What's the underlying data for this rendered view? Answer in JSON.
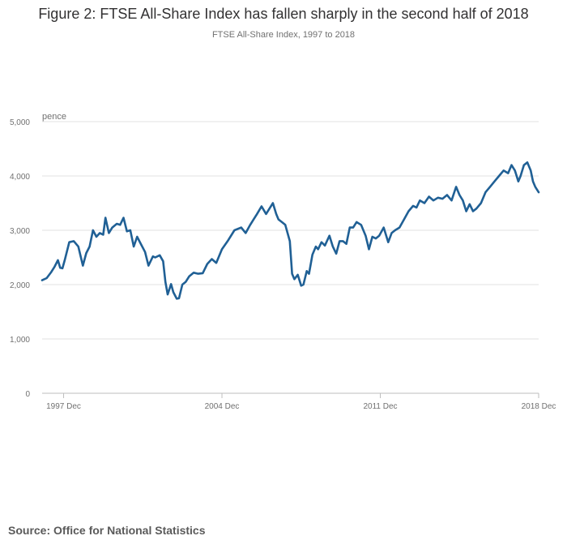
{
  "chart_data": {
    "type": "line",
    "title": "Figure 2: FTSE All-Share Index has fallen sharply in the second half of 2018",
    "subtitle": "FTSE All-Share Index, 1997 to 2018",
    "ylabel": "pence",
    "xlabel": "",
    "ylim": [
      0,
      5000
    ],
    "yticks": [
      0,
      1000,
      2000,
      3000,
      4000,
      5000
    ],
    "ytick_labels": [
      "0",
      "1,000",
      "2,000",
      "3,000",
      "4,000",
      "5,000"
    ],
    "xlim": [
      1997.0,
      2018.95
    ],
    "xticks": [
      1997.95,
      2004.95,
      2011.95,
      2018.95
    ],
    "xtick_labels": [
      "1997 Dec",
      "2004 Dec",
      "2011 Dec",
      "2018 Dec"
    ],
    "grid": true,
    "series": [
      {
        "name": "FTSE All-Share Index",
        "color": "#206095",
        "x": [
          1997.0,
          1997.2,
          1997.4,
          1997.55,
          1997.7,
          1997.8,
          1997.9,
          1998.0,
          1998.2,
          1998.4,
          1998.6,
          1998.8,
          1998.95,
          1999.1,
          1999.25,
          1999.4,
          1999.55,
          1999.7,
          1999.8,
          1999.95,
          2000.1,
          2000.3,
          2000.45,
          2000.6,
          2000.75,
          2000.9,
          2001.05,
          2001.2,
          2001.35,
          2001.55,
          2001.7,
          2001.9,
          2002.0,
          2002.2,
          2002.35,
          2002.45,
          2002.55,
          2002.7,
          2002.8,
          2002.95,
          2003.05,
          2003.2,
          2003.35,
          2003.5,
          2003.7,
          2003.9,
          2004.1,
          2004.3,
          2004.5,
          2004.7,
          2004.95,
          2005.2,
          2005.5,
          2005.8,
          2006.0,
          2006.2,
          2006.35,
          2006.5,
          2006.7,
          2006.9,
          2007.05,
          2007.2,
          2007.35,
          2007.45,
          2007.6,
          2007.75,
          2007.95,
          2008.05,
          2008.15,
          2008.3,
          2008.45,
          2008.55,
          2008.7,
          2008.8,
          2008.95,
          2009.1,
          2009.2,
          2009.35,
          2009.5,
          2009.7,
          2009.85,
          2010.0,
          2010.15,
          2010.3,
          2010.45,
          2010.6,
          2010.75,
          2010.9,
          2011.1,
          2011.3,
          2011.45,
          2011.6,
          2011.75,
          2011.9,
          2012.1,
          2012.3,
          2012.45,
          2012.6,
          2012.8,
          2013.0,
          2013.2,
          2013.4,
          2013.55,
          2013.7,
          2013.9,
          2014.1,
          2014.3,
          2014.5,
          2014.7,
          2014.9,
          2015.1,
          2015.3,
          2015.45,
          2015.6,
          2015.75,
          2015.9,
          2016.05,
          2016.2,
          2016.4,
          2016.6,
          2016.8,
          2017.0,
          2017.2,
          2017.4,
          2017.6,
          2017.75,
          2017.9,
          2018.05,
          2018.15,
          2018.3,
          2018.45,
          2018.6,
          2018.7,
          2018.8,
          2018.95
        ],
        "values": [
          2080,
          2120,
          2230,
          2330,
          2450,
          2310,
          2300,
          2450,
          2780,
          2800,
          2700,
          2350,
          2580,
          2700,
          3000,
          2880,
          2950,
          2920,
          3230,
          2950,
          3050,
          3120,
          3100,
          3230,
          2980,
          3000,
          2700,
          2880,
          2760,
          2600,
          2350,
          2520,
          2500,
          2540,
          2430,
          2050,
          1820,
          2010,
          1860,
          1740,
          1750,
          2000,
          2050,
          2150,
          2220,
          2200,
          2210,
          2380,
          2470,
          2400,
          2650,
          2800,
          3000,
          3050,
          2950,
          3100,
          3200,
          3300,
          3440,
          3300,
          3400,
          3500,
          3300,
          3200,
          3150,
          3100,
          2800,
          2200,
          2100,
          2180,
          1980,
          2000,
          2250,
          2200,
          2550,
          2700,
          2650,
          2780,
          2720,
          2900,
          2700,
          2570,
          2800,
          2800,
          2750,
          3050,
          3050,
          3150,
          3100,
          2900,
          2650,
          2880,
          2850,
          2900,
          3050,
          2780,
          2950,
          3000,
          3050,
          3200,
          3350,
          3450,
          3420,
          3550,
          3500,
          3620,
          3550,
          3600,
          3580,
          3650,
          3550,
          3800,
          3650,
          3550,
          3350,
          3480,
          3350,
          3400,
          3500,
          3700,
          3800,
          3900,
          4000,
          4100,
          4050,
          4200,
          4100,
          3900,
          4000,
          4200,
          4250,
          4100,
          3900,
          3800,
          3700
        ]
      }
    ]
  },
  "source": "Source: Office for National Statistics"
}
